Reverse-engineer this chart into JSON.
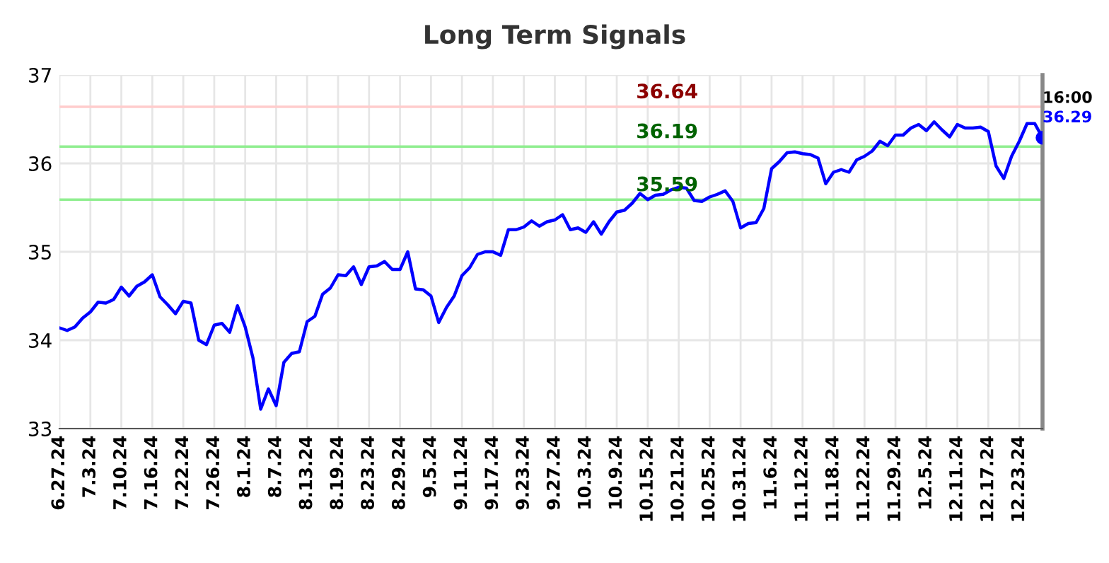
{
  "chart_data": {
    "type": "line",
    "title": "Long Term Signals",
    "categories": [
      "6.27.24",
      null,
      null,
      null,
      "7.3.24",
      null,
      null,
      null,
      "7.10.24",
      null,
      null,
      null,
      "7.16.24",
      null,
      null,
      null,
      "7.22.24",
      null,
      null,
      null,
      "7.26.24",
      null,
      null,
      null,
      "8.1.24",
      null,
      null,
      null,
      "8.7.24",
      null,
      null,
      null,
      "8.13.24",
      null,
      null,
      null,
      "8.19.24",
      null,
      null,
      null,
      "8.23.24",
      null,
      null,
      null,
      "8.29.24",
      null,
      null,
      null,
      "9.5.24",
      null,
      null,
      null,
      "9.11.24",
      null,
      null,
      null,
      "9.17.24",
      null,
      null,
      null,
      "9.23.24",
      null,
      null,
      null,
      "9.27.24",
      null,
      null,
      null,
      "10.3.24",
      null,
      null,
      null,
      "10.9.24",
      null,
      null,
      null,
      "10.15.24",
      null,
      null,
      null,
      "10.21.24",
      null,
      null,
      null,
      "10.25.24",
      null,
      null,
      null,
      "10.31.24",
      null,
      null,
      null,
      "11.6.24",
      null,
      null,
      null,
      "11.12.24",
      null,
      null,
      null,
      "11.18.24",
      null,
      null,
      null,
      "11.22.24",
      null,
      null,
      null,
      "11.29.24",
      null,
      null,
      null,
      "12.5.24",
      null,
      null,
      null,
      "12.11.24",
      null,
      null,
      null,
      "12.17.24",
      null,
      null,
      null,
      "12.23.24",
      null,
      null,
      null
    ],
    "series": [
      {
        "color": "#0000ff",
        "values": [
          34.14,
          34.11,
          34.15,
          34.25,
          34.32,
          34.43,
          34.42,
          34.46,
          34.6,
          34.5,
          34.61,
          34.66,
          34.74,
          34.49,
          34.4,
          34.3,
          34.44,
          34.42,
          34.0,
          33.95,
          34.17,
          34.19,
          34.09,
          34.39,
          34.15,
          33.8,
          33.22,
          33.45,
          33.26,
          33.75,
          33.85,
          33.87,
          34.21,
          34.27,
          34.52,
          34.59,
          34.74,
          34.73,
          34.83,
          34.63,
          34.83,
          34.84,
          34.89,
          34.8,
          34.8,
          35.0,
          34.58,
          34.57,
          34.5,
          34.2,
          34.37,
          34.5,
          34.73,
          34.82,
          34.97,
          35.0,
          35.0,
          34.96,
          35.25,
          35.25,
          35.28,
          35.35,
          35.29,
          35.34,
          35.36,
          35.42,
          35.25,
          35.27,
          35.22,
          35.34,
          35.2,
          35.34,
          35.45,
          35.47,
          35.55,
          35.66,
          35.59,
          35.64,
          35.65,
          35.7,
          35.73,
          35.72,
          35.58,
          35.57,
          35.62,
          35.65,
          35.69,
          35.57,
          35.27,
          35.32,
          35.33,
          35.49,
          35.94,
          36.02,
          36.12,
          36.13,
          36.11,
          36.1,
          36.06,
          35.77,
          35.9,
          35.93,
          35.9,
          36.04,
          36.08,
          36.14,
          36.25,
          36.2,
          36.32,
          36.32,
          36.4,
          36.44,
          36.37,
          36.47,
          36.38,
          36.3,
          36.44,
          36.4,
          36.4,
          36.41,
          36.36,
          35.97,
          35.83,
          36.08,
          36.25,
          36.45,
          36.45,
          36.29
        ]
      },
      {
        "type": "scatter",
        "color": "#0000ff",
        "marker": "circle",
        "values": [
          null,
          null,
          null,
          null,
          null,
          null,
          null,
          null,
          null,
          null,
          null,
          null,
          null,
          null,
          null,
          null,
          null,
          null,
          null,
          null,
          null,
          null,
          null,
          null,
          null,
          null,
          null,
          null,
          null,
          null,
          null,
          null,
          null,
          null,
          null,
          null,
          null,
          null,
          null,
          null,
          null,
          null,
          null,
          null,
          null,
          null,
          null,
          null,
          null,
          null,
          null,
          null,
          null,
          null,
          null,
          null,
          null,
          null,
          null,
          null,
          null,
          null,
          null,
          null,
          null,
          null,
          null,
          null,
          null,
          null,
          null,
          null,
          null,
          null,
          null,
          null,
          null,
          null,
          null,
          null,
          null,
          null,
          null,
          null,
          null,
          null,
          null,
          null,
          null,
          null,
          null,
          null,
          null,
          null,
          null,
          null,
          null,
          null,
          null,
          null,
          null,
          null,
          null,
          null,
          null,
          null,
          null,
          null,
          null,
          null,
          null,
          null,
          null,
          null,
          null,
          null,
          null,
          null,
          null,
          null,
          null,
          null,
          null,
          null,
          null,
          null,
          null,
          36.29
        ]
      }
    ],
    "ylim": [
      33,
      37
    ],
    "yticks": [
      33,
      34,
      35,
      36,
      37
    ],
    "grid": true,
    "marker": "none",
    "line_style": "solid",
    "ref_lines": [
      {
        "axis": "y",
        "value": 36.64,
        "label": "36.64",
        "color": "#ffcccc"
      },
      {
        "axis": "y",
        "value": 36.19,
        "label": "36.19",
        "color": "#90ee90"
      },
      {
        "axis": "y",
        "value": 35.59,
        "label": "35.59",
        "color": "#90ee90"
      }
    ],
    "annotations": [
      "16:00",
      "36.29"
    ]
  }
}
